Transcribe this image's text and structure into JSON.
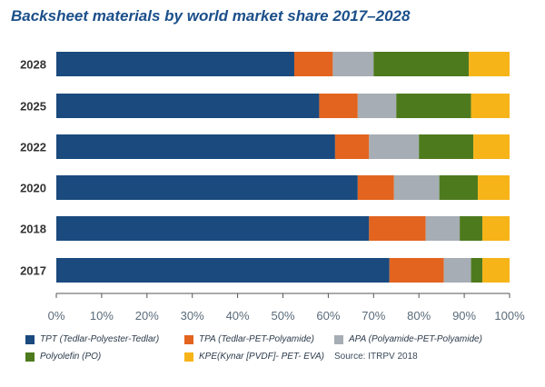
{
  "chart_data": {
    "type": "bar",
    "orientation": "horizontal",
    "stacked": true,
    "title": "Backsheet materials by world market share 2017–2028",
    "categories": [
      "2028",
      "2025",
      "2022",
      "2020",
      "2018",
      "2017"
    ],
    "xlim": [
      0,
      100
    ],
    "x_ticks": [
      "0%",
      "10%",
      "20%",
      "30%",
      "40%",
      "50%",
      "60%",
      "70%",
      "80%",
      "90%",
      "100%"
    ],
    "grid": false,
    "legend_position": "bottom",
    "series": [
      {
        "name": "TPT (Tedlar-Polyester-Tedlar)",
        "color": "#1a4a7e",
        "values": [
          52.5,
          58,
          61.5,
          66.5,
          69,
          73.5
        ]
      },
      {
        "name": "TPA (Tedlar-PET-Polyamide)",
        "color": "#e2641f",
        "values": [
          8.5,
          8.5,
          7.5,
          8,
          12.5,
          12
        ]
      },
      {
        "name": "APA (Polyamide-PET-Polyamide)",
        "color": "#a6adb4",
        "values": [
          9,
          8.5,
          11,
          10,
          7.5,
          6
        ]
      },
      {
        "name": "Polyolefin (PO)",
        "color": "#4e7a1e",
        "values": [
          21,
          16.5,
          12,
          8.5,
          5,
          2.5
        ]
      },
      {
        "name": "KPE(Kynar [PVDF]- PET- EVA)",
        "color": "#f6b418",
        "values": [
          9,
          8.5,
          8,
          7,
          6,
          6
        ]
      }
    ],
    "source": "Source: ITRPV 2018"
  }
}
